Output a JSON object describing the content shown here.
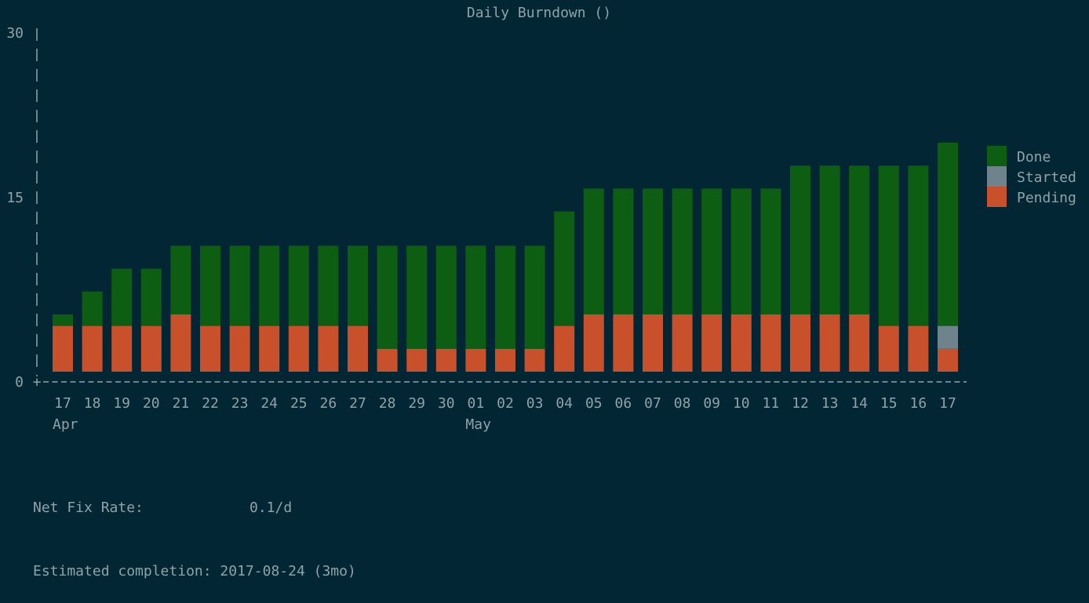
{
  "chart_data": {
    "type": "bar",
    "stacked": true,
    "title": "Daily Burndown ()",
    "ylim": [
      0,
      30
    ],
    "yticks": [
      "0",
      "15",
      "30"
    ],
    "categories": [
      "17",
      "18",
      "19",
      "20",
      "21",
      "22",
      "23",
      "24",
      "25",
      "26",
      "27",
      "28",
      "29",
      "30",
      "01",
      "02",
      "03",
      "04",
      "05",
      "06",
      "07",
      "08",
      "09",
      "10",
      "11",
      "12",
      "13",
      "14",
      "15",
      "16",
      "17"
    ],
    "month_labels": [
      {
        "label": "Apr",
        "at": "17"
      },
      {
        "label": "May",
        "at": "01"
      }
    ],
    "series": [
      {
        "name": "Done",
        "color": "#0d5e12",
        "values": [
          1,
          3,
          5,
          5,
          6,
          7,
          7,
          7,
          7,
          7,
          7,
          9,
          9,
          9,
          9,
          9,
          9,
          10,
          11,
          11,
          11,
          11,
          11,
          11,
          11,
          13,
          13,
          13,
          14,
          14,
          16
        ]
      },
      {
        "name": "Started",
        "color": "#6f838c",
        "values": [
          0,
          0,
          0,
          0,
          0,
          0,
          0,
          0,
          0,
          0,
          0,
          0,
          0,
          0,
          0,
          0,
          0,
          0,
          0,
          0,
          0,
          0,
          0,
          0,
          0,
          0,
          0,
          0,
          0,
          0,
          2
        ]
      },
      {
        "name": "Pending",
        "color": "#c8502a",
        "values": [
          4,
          4,
          4,
          4,
          5,
          4,
          4,
          4,
          4,
          4,
          4,
          2,
          2,
          2,
          2,
          2,
          2,
          4,
          5,
          5,
          5,
          5,
          5,
          5,
          5,
          5,
          5,
          5,
          4,
          4,
          2
        ]
      }
    ],
    "legend_position": "right",
    "grid": false
  },
  "stats": {
    "net_fix_rate_label": "Net Fix Rate:",
    "net_fix_rate_value": "0.1/d",
    "completion_label": "Estimated completion:",
    "completion_value": "2017-08-24 (3mo)"
  },
  "colors": {
    "background": "#022634",
    "text": "#8fa3a8"
  }
}
